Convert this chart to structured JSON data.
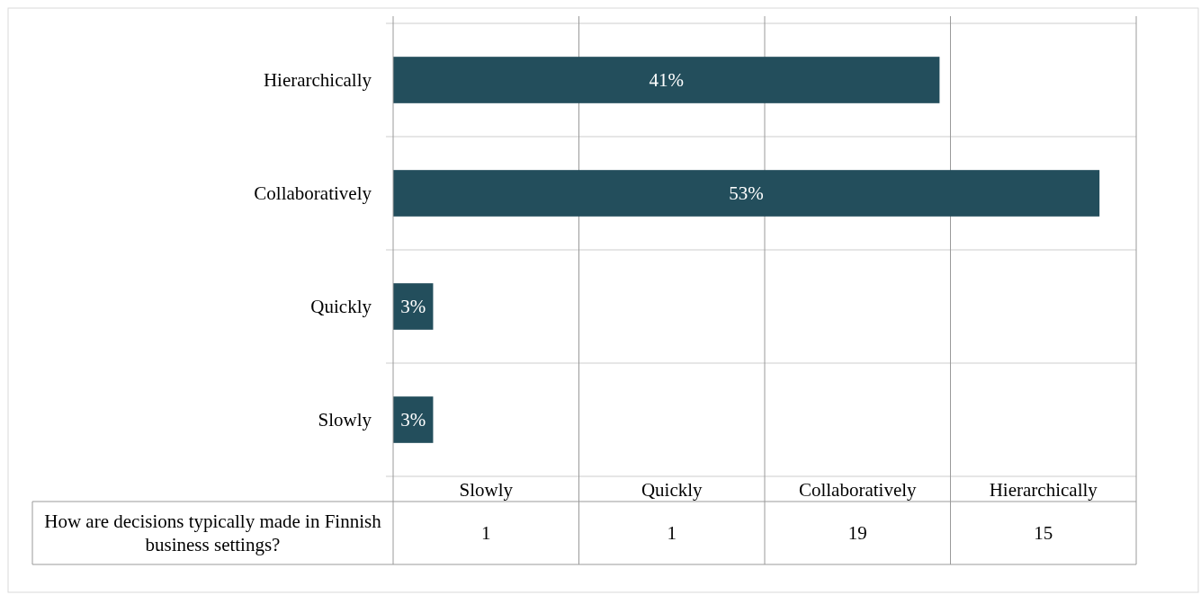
{
  "chart_data": {
    "type": "bar",
    "orientation": "horizontal",
    "categories": [
      "Hierarchically",
      "Collaboratively",
      "Quickly",
      "Slowly"
    ],
    "series": [
      {
        "name": "How are decisions typically made in Finnish business settings?",
        "color": "#234e5c",
        "values": [
          41,
          53,
          3,
          3
        ],
        "value_labels": [
          "41%",
          "53%",
          "3%",
          "3%"
        ]
      }
    ],
    "annotations": [
      "15",
      "19",
      "1",
      "1"
    ],
    "grid": "x",
    "tick_labels": "y"
  }
}
